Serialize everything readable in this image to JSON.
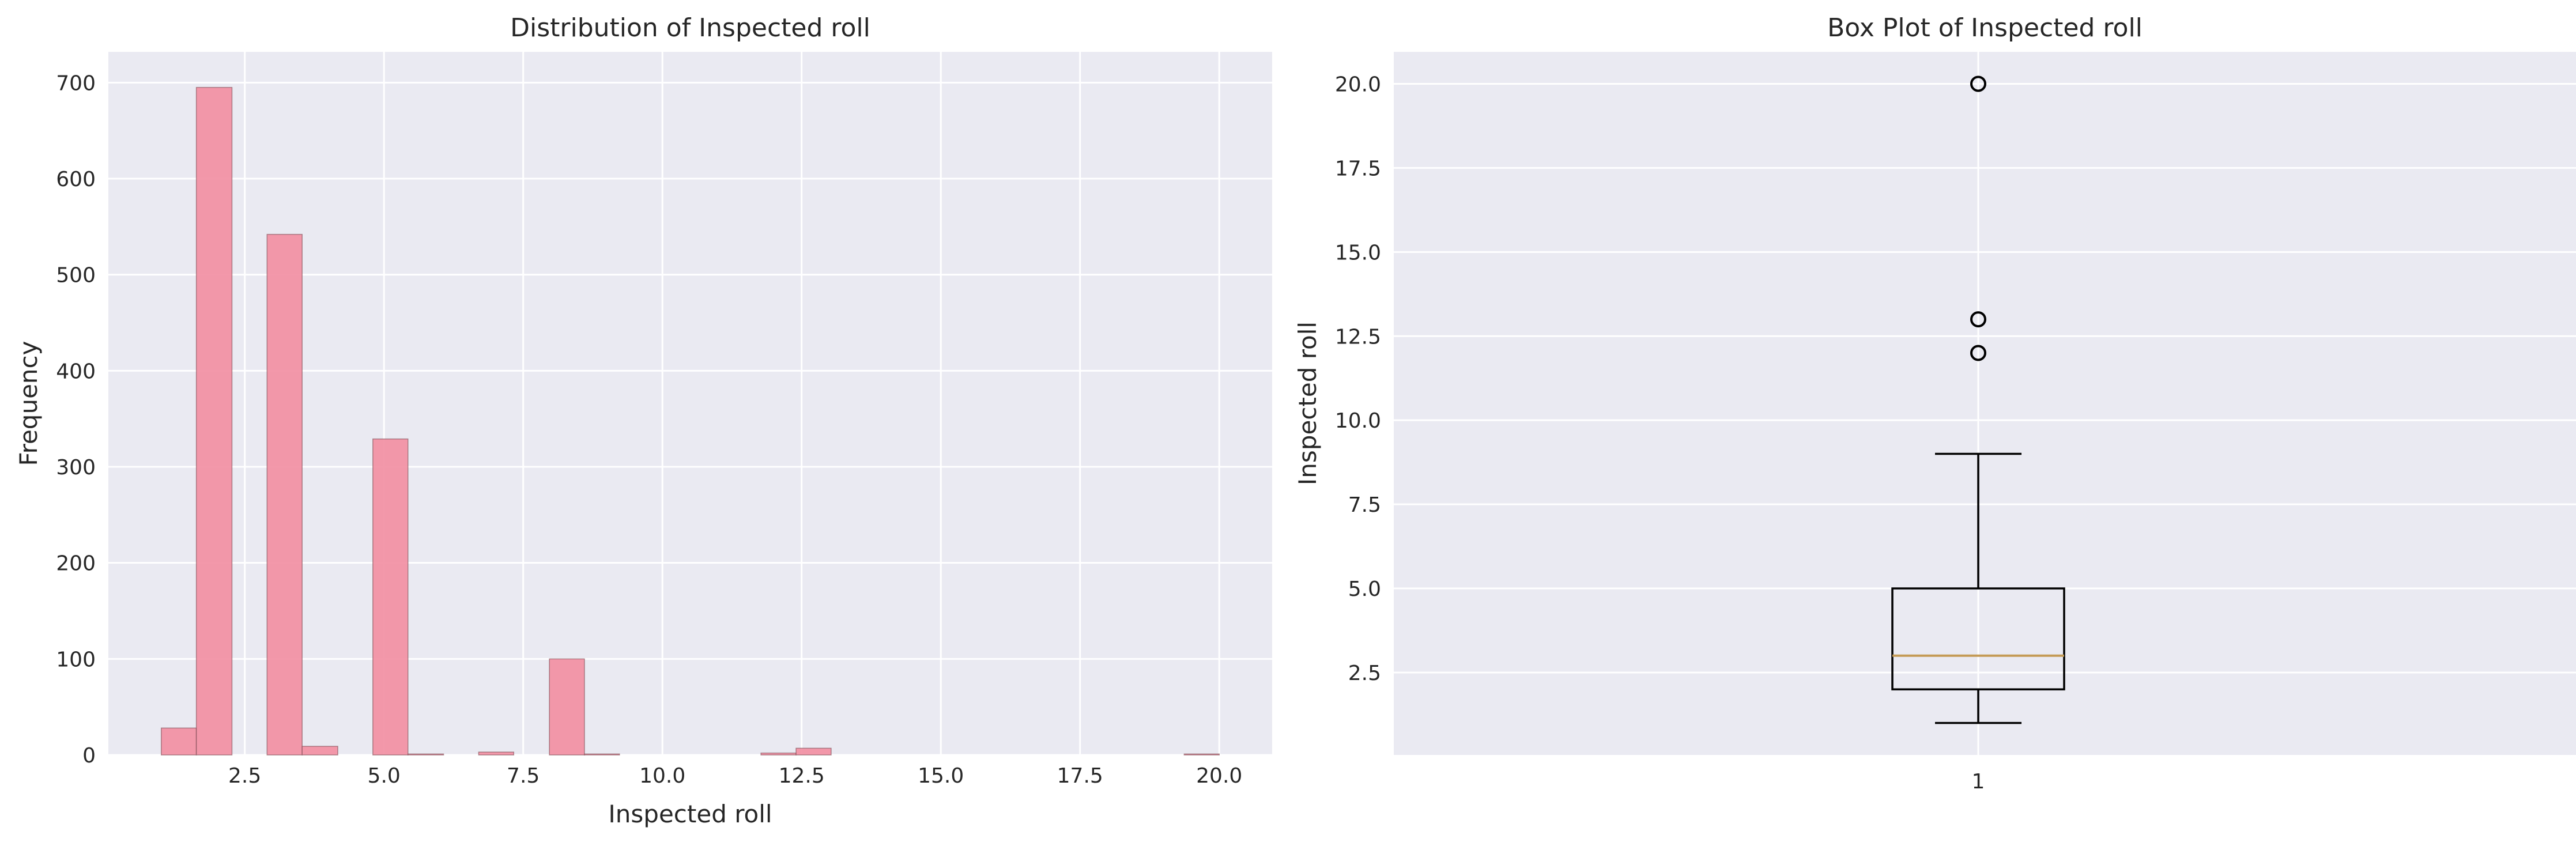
{
  "chart_data": [
    {
      "type": "histogram",
      "title": "Distribution of Inspected roll",
      "xlabel": "Inspected roll",
      "ylabel": "Frequency",
      "xlim": [
        0.05,
        20.95
      ],
      "ylim": [
        0,
        732
      ],
      "xticks": [
        "2.5",
        "5.0",
        "7.5",
        "10.0",
        "12.5",
        "15.0",
        "17.5",
        "20.0"
      ],
      "yticks": [
        "0",
        "100",
        "200",
        "300",
        "400",
        "500",
        "600",
        "700"
      ],
      "grid": true,
      "bar_color": "#f28fa3",
      "bins": [
        {
          "x0": 1.0,
          "x1": 1.63,
          "count": 28
        },
        {
          "x0": 1.63,
          "x1": 2.27,
          "count": 695
        },
        {
          "x0": 2.27,
          "x1": 2.9,
          "count": 0
        },
        {
          "x0": 2.9,
          "x1": 3.53,
          "count": 542
        },
        {
          "x0": 3.53,
          "x1": 4.17,
          "count": 9
        },
        {
          "x0": 4.17,
          "x1": 4.8,
          "count": 0
        },
        {
          "x0": 4.8,
          "x1": 5.43,
          "count": 329
        },
        {
          "x0": 5.43,
          "x1": 6.07,
          "count": 1
        },
        {
          "x0": 6.07,
          "x1": 6.7,
          "count": 0
        },
        {
          "x0": 6.7,
          "x1": 7.33,
          "count": 3
        },
        {
          "x0": 7.33,
          "x1": 7.97,
          "count": 0
        },
        {
          "x0": 7.97,
          "x1": 8.6,
          "count": 100
        },
        {
          "x0": 8.6,
          "x1": 9.23,
          "count": 1
        },
        {
          "x0": 11.77,
          "x1": 12.4,
          "count": 2
        },
        {
          "x0": 12.4,
          "x1": 13.03,
          "count": 7
        },
        {
          "x0": 19.37,
          "x1": 20.0,
          "count": 1
        }
      ]
    },
    {
      "type": "box",
      "title": "Box Plot of Inspected roll",
      "ylabel": "Inspected roll",
      "ylim": [
        0.05,
        20.95
      ],
      "xticks": [
        "1"
      ],
      "yticks": [
        "2.5",
        "5.0",
        "7.5",
        "10.0",
        "12.5",
        "15.0",
        "17.5",
        "20.0"
      ],
      "grid": true,
      "median_color": "#c49a55",
      "box": {
        "whisker_low": 1,
        "q1": 2,
        "median": 3,
        "q3": 5,
        "whisker_high": 9
      },
      "outliers": [
        12,
        13,
        20
      ]
    }
  ]
}
